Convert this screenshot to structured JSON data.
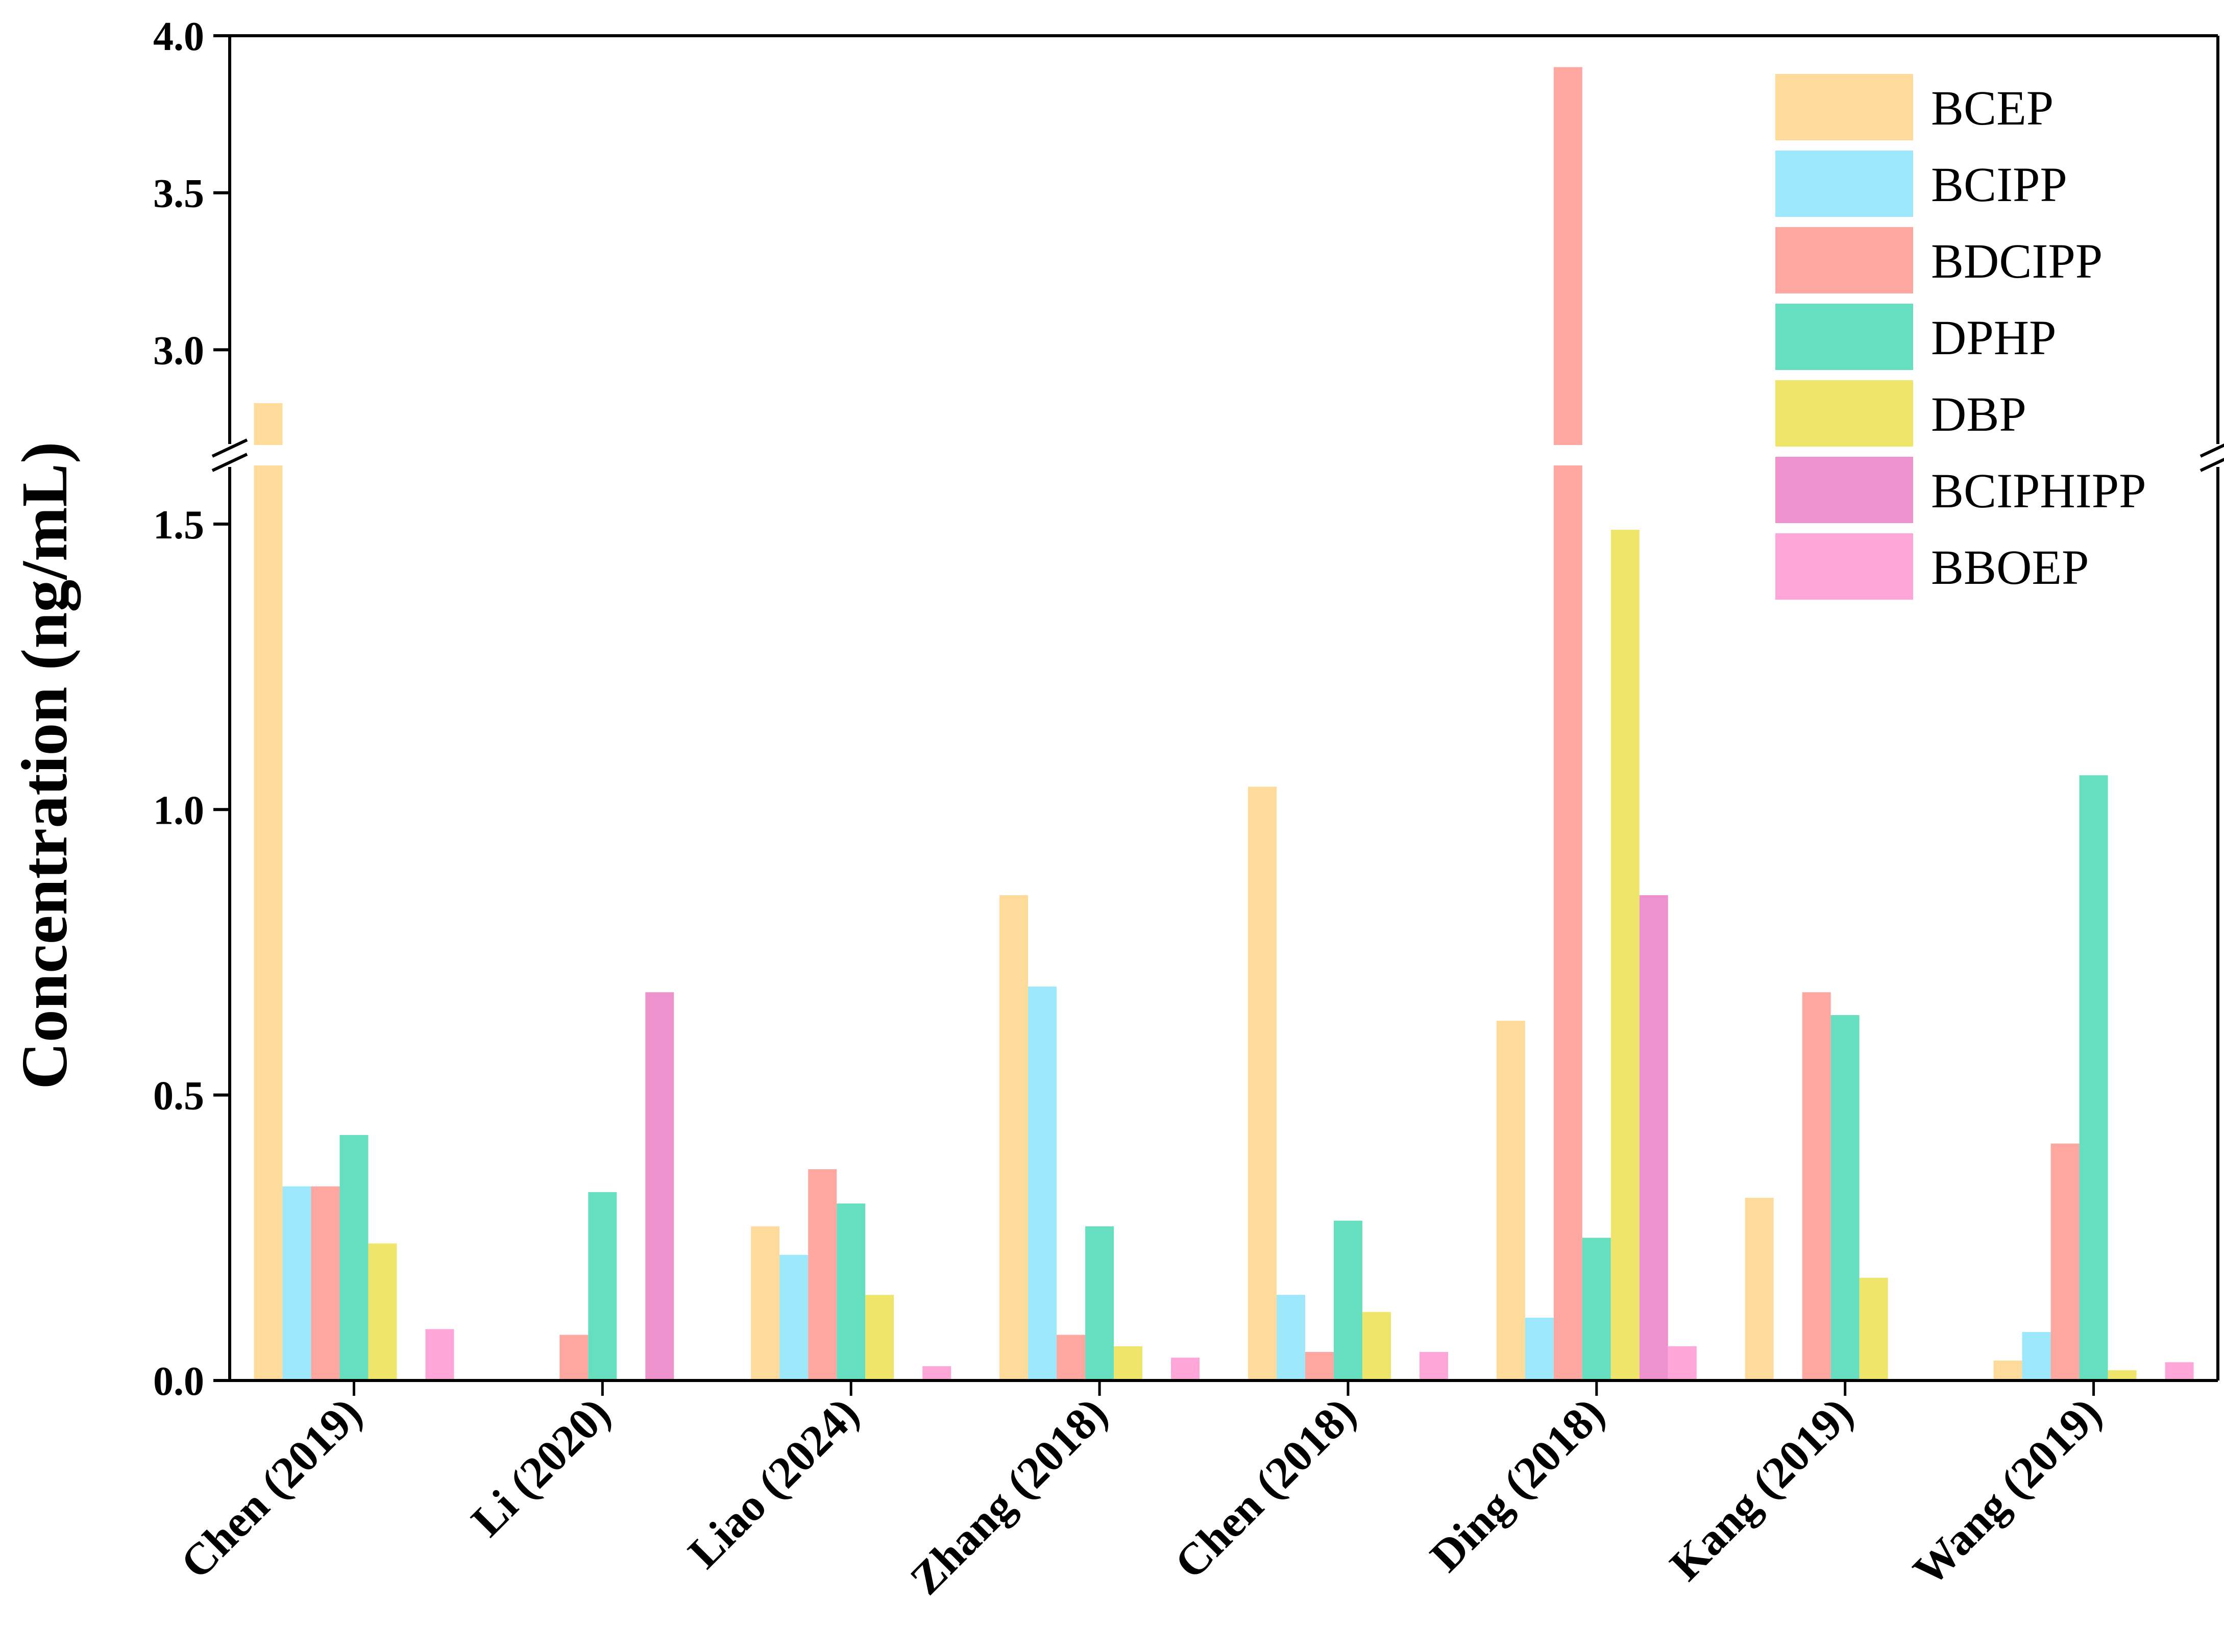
{
  "chart_data": {
    "type": "bar",
    "ylabel": "Concentration (ng/mL)",
    "xlabel": "",
    "y_axis_break": {
      "lower_range": [
        0,
        1.6
      ],
      "upper_range": [
        2.7,
        4.0
      ]
    },
    "y_ticks_lower": [
      "0.0",
      "0.5",
      "1.0",
      "1.5"
    ],
    "y_ticks_upper": [
      "3.0",
      "3.5",
      "4.0"
    ],
    "categories": [
      "Chen (2019)",
      "Li (2020)",
      "Liao (2024)",
      "Zhang (2018)",
      "Chen (2018)",
      "Ding (2018)",
      "Kang (2019)",
      "Wang (2019)"
    ],
    "series": [
      {
        "name": "BCEP",
        "color": "#FEDB9B",
        "values": [
          2.83,
          0,
          0.27,
          0.85,
          1.04,
          0.63,
          0.32,
          0.035
        ]
      },
      {
        "name": "BCIPP",
        "color": "#9DE8FA",
        "values": [
          0.34,
          0,
          0.22,
          0.69,
          0.15,
          0.11,
          0,
          0.085
        ]
      },
      {
        "name": "BDCIPP",
        "color": "#FDA7A0",
        "values": [
          0.34,
          0.08,
          0.37,
          0.08,
          0.05,
          3.9,
          0.68,
          0.415
        ]
      },
      {
        "name": "DPHP",
        "color": "#66DFC0",
        "values": [
          0.43,
          0.33,
          0.31,
          0.27,
          0.28,
          0.25,
          0.64,
          1.06
        ]
      },
      {
        "name": "DBP",
        "color": "#EFE56B",
        "values": [
          0.24,
          0,
          0.15,
          0.06,
          0.12,
          1.49,
          0.18,
          0.018
        ]
      },
      {
        "name": "BCIPHIPP",
        "color": "#EE92CD",
        "values": [
          0,
          0.68,
          0,
          0,
          0,
          0.85,
          0,
          0
        ]
      },
      {
        "name": "BBOEP",
        "color": "#FFA6D8",
        "values": [
          0.09,
          0,
          0.025,
          0.04,
          0.05,
          0.06,
          0,
          0.032
        ]
      }
    ],
    "legend_position": "top-right",
    "grid": false
  }
}
